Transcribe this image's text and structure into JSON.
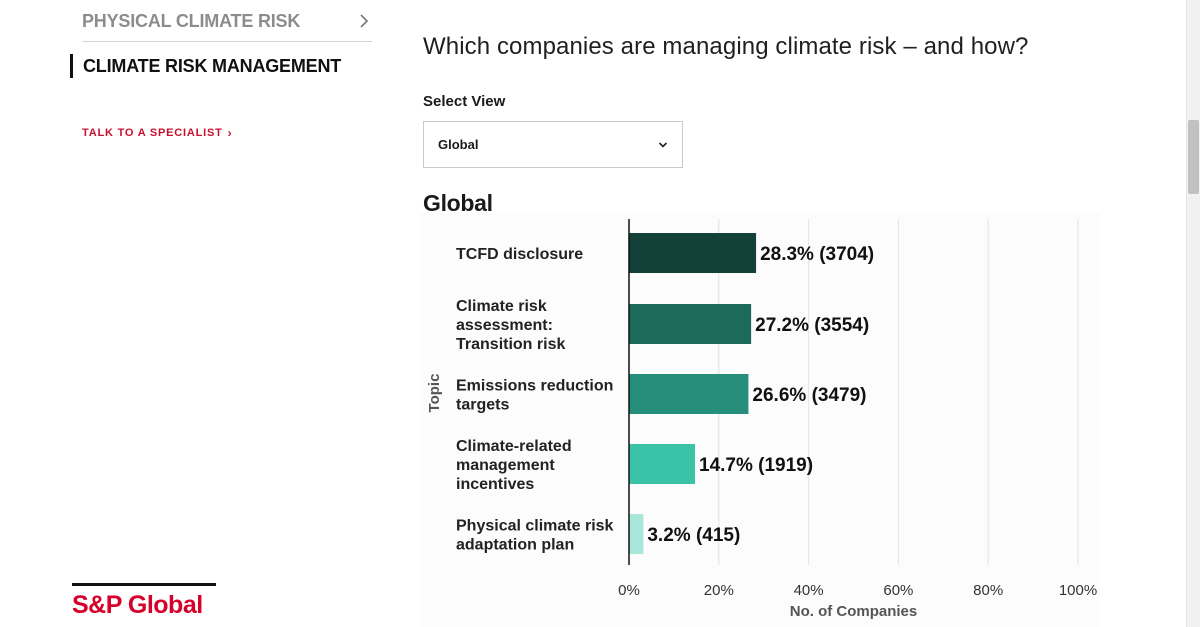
{
  "sidebar": {
    "prev_item": "PHYSICAL CLIMATE RISK",
    "active_item": "CLIMATE RISK MANAGEMENT",
    "cta_link": "TALK TO A SPECIALIST",
    "cta_arrow": "›"
  },
  "brand": {
    "logo_text": "S&P Global",
    "color": "#d6002a"
  },
  "main": {
    "heading": "Which companies are managing climate risk – and how?",
    "select_label": "Select View",
    "select_value": "Global",
    "chart_title": "Global"
  },
  "icons": {
    "sidebar_chevron": "chevron-right-icon",
    "select_chevron": "chevron-down-icon"
  },
  "chart_data": {
    "type": "bar",
    "orientation": "horizontal",
    "title": "Global",
    "xlabel": "No. of Companies",
    "ylabel": "Topic",
    "categories": [
      [
        "TCFD disclosure"
      ],
      [
        "Climate risk",
        "assessment:",
        "Transition risk"
      ],
      [
        "Emissions reduction",
        "targets"
      ],
      [
        "Climate-related",
        "management",
        "incentives"
      ],
      [
        "Physical climate risk",
        "adaptation plan"
      ]
    ],
    "values": [
      28.3,
      27.2,
      26.6,
      14.7,
      3.2
    ],
    "counts": [
      3704,
      3554,
      3479,
      1919,
      415
    ],
    "data_labels": [
      "28.3% (3704)",
      "27.2% (3554)",
      "26.6% (3479)",
      "14.7% (1919)",
      "3.2% (415)"
    ],
    "colors": [
      "#14403a",
      "#1e6a5a",
      "#268f7b",
      "#3bc3a8",
      "#a8e6da"
    ],
    "xlim": [
      0,
      100
    ],
    "xticks": [
      0,
      20,
      40,
      60,
      80,
      100
    ],
    "xtick_labels": [
      "0%",
      "20%",
      "40%",
      "60%",
      "80%",
      "100%"
    ],
    "grid": true
  }
}
